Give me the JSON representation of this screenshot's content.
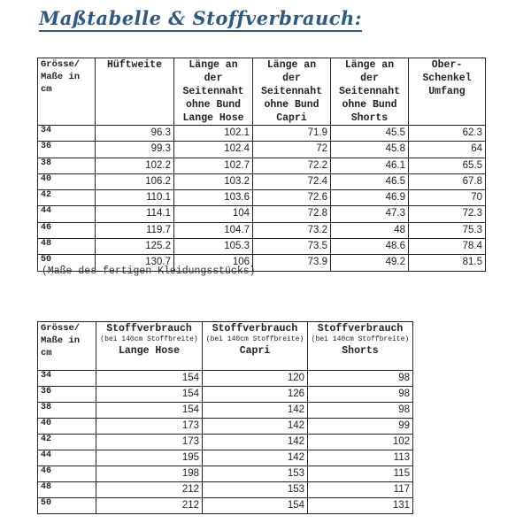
{
  "title": "Maßtabelle & Stoffverbrauch:",
  "table1": {
    "headers": [
      "Grösse/ Maße in cm",
      "Hüftweite",
      "Länge an der Seitennaht ohne Bund Lange Hose",
      "Länge an der Seitennaht ohne Bund Capri",
      "Länge an der Seitennaht ohne Bund Shorts",
      "Ober-Schenkel Umfang"
    ],
    "rows": [
      [
        "34",
        "96.3",
        "102.1",
        "71.9",
        "45.5",
        "62.3"
      ],
      [
        "36",
        "99.3",
        "102.4",
        "72",
        "45.8",
        "64"
      ],
      [
        "38",
        "102.2",
        "102.7",
        "72.2",
        "46.1",
        "65.5"
      ],
      [
        "40",
        "106.2",
        "103.2",
        "72.4",
        "46.5",
        "67.8"
      ],
      [
        "42",
        "110.1",
        "103.6",
        "72.6",
        "46.9",
        "70"
      ],
      [
        "44",
        "114.1",
        "104",
        "72.8",
        "47.3",
        "72.3"
      ],
      [
        "46",
        "119.7",
        "104.7",
        "73.2",
        "48",
        "75.3"
      ],
      [
        "48",
        "125.2",
        "105.3",
        "73.5",
        "48.6",
        "78.4"
      ],
      [
        "50",
        "130.7",
        "106",
        "73.9",
        "49.2",
        "81.5"
      ]
    ]
  },
  "note": "(Maße des fertigen Kleidungsstücks)",
  "table2": {
    "size_header": "Grösse/ Maße in cm",
    "headers": [
      {
        "main": "Stoffverbrauch",
        "sub": "(bei 140cm Stoffbreite)",
        "type": "Lange Hose"
      },
      {
        "main": "Stoffverbrauch",
        "sub": "(bei 140cm Stoffbreite)",
        "type": "Capri"
      },
      {
        "main": "Stoffverbrauch",
        "sub": "(bei 140cm Stoffbreite)",
        "type": "Shorts"
      }
    ],
    "rows": [
      [
        "34",
        "154",
        "120",
        "98"
      ],
      [
        "36",
        "154",
        "126",
        "98"
      ],
      [
        "38",
        "154",
        "142",
        "98"
      ],
      [
        "40",
        "173",
        "142",
        "99"
      ],
      [
        "42",
        "173",
        "142",
        "102"
      ],
      [
        "44",
        "195",
        "142",
        "113"
      ],
      [
        "46",
        "198",
        "153",
        "115"
      ],
      [
        "48",
        "212",
        "153",
        "117"
      ],
      [
        "50",
        "212",
        "154",
        "131"
      ]
    ]
  }
}
